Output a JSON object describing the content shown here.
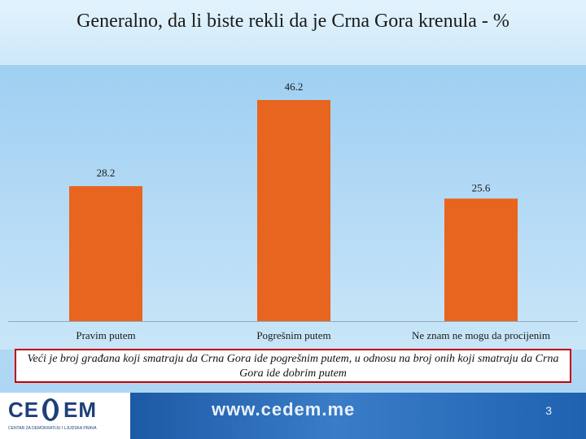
{
  "header": {
    "title": "Generalno, da li biste rekli da je Crna Gora krenula - %"
  },
  "chart_data": {
    "type": "bar",
    "title": "Generalno, da li biste rekli da je Crna Gora krenula - %",
    "categories": [
      "Pravim putem",
      "Pogrešnim putem",
      "Ne znam ne mogu da procijenim"
    ],
    "values": [
      28.2,
      46.2,
      25.6
    ],
    "data_labels": [
      "28.2",
      "46.2",
      "25.6"
    ],
    "xlabel": "",
    "ylabel": "",
    "ylim": [
      0,
      50
    ],
    "grid": false,
    "legend": "none",
    "bar_color": "#e8651f"
  },
  "note": {
    "text": "Veći je broj građana koji smatraju da Crna Gora ide pogrešnim putem, u odnosu na broj onih koji smatraju da Crna Gora ide dobrim putem"
  },
  "footer": {
    "logo_left": "CE",
    "logo_right": "EM",
    "logo_subtitle": "CENTAR ZA DEMOKRATIJU I LJUDSKA PRAVA",
    "url": "www.cedem.me",
    "page_number": "3"
  },
  "colors": {
    "accent": "#e8651f",
    "note_border": "#c00000",
    "footer_blue": "#1d5aa6"
  }
}
